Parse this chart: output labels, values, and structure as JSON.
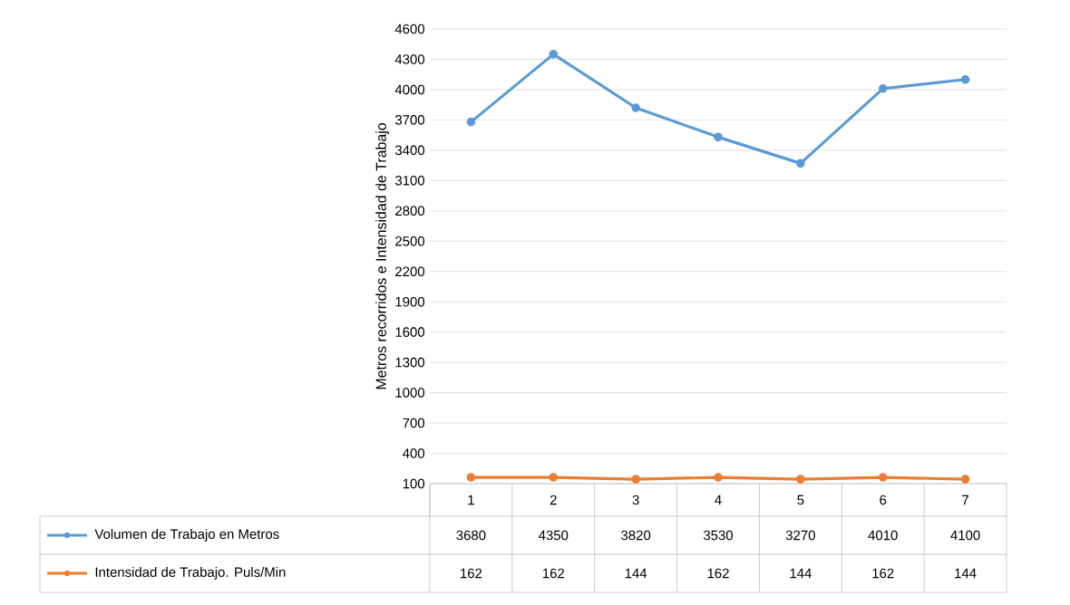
{
  "chart_data": {
    "type": "line",
    "ylabel": "Metros recorridos e Intensidad de Trabajo",
    "categories": [
      "1",
      "2",
      "3",
      "4",
      "5",
      "6",
      "7"
    ],
    "series": [
      {
        "name": "Volumen de Trabajo en Metros",
        "color": "#5b9bd5",
        "values": [
          3680,
          4350,
          3820,
          3530,
          3270,
          4010,
          4100
        ]
      },
      {
        "name": "Intensidad de Trabajo. Puls/Min",
        "color": "#ed7d31",
        "values": [
          162,
          162,
          144,
          162,
          144,
          162,
          144
        ]
      }
    ],
    "ylim": [
      100,
      4600
    ],
    "yticks": [
      100,
      400,
      700,
      1000,
      1300,
      1600,
      1900,
      2200,
      2500,
      2800,
      3100,
      3400,
      3700,
      4000,
      4300,
      4600
    ],
    "grid": "y",
    "marker": "circle",
    "line_style": "solid",
    "data_labels": true,
    "legend": "bottom"
  }
}
